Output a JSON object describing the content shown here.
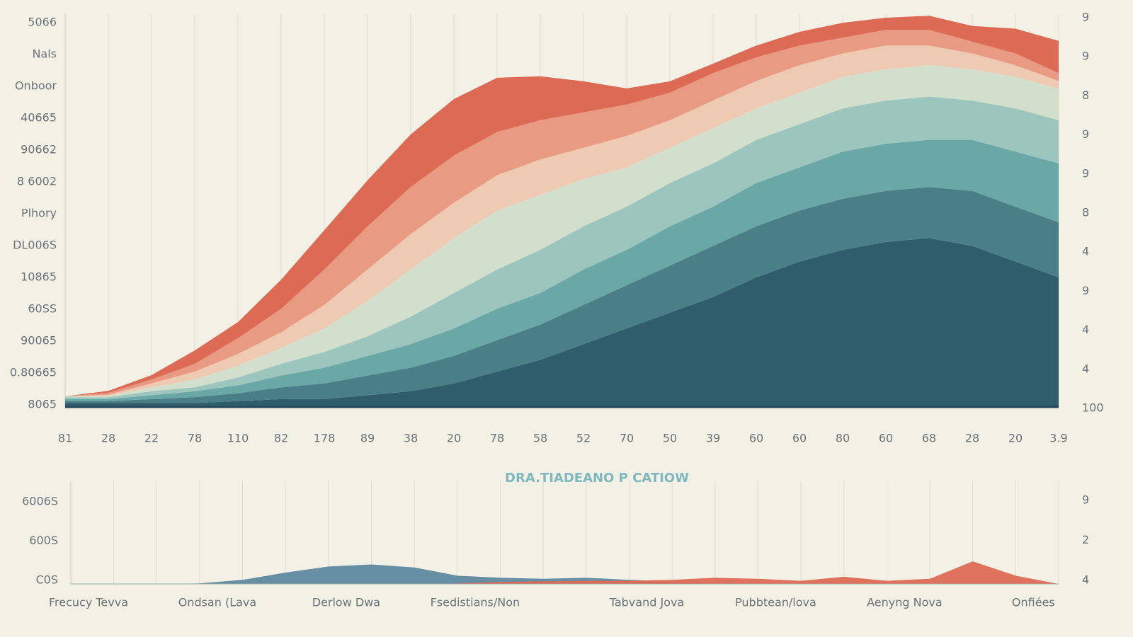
{
  "chart_data": [
    {
      "type": "stacked_area",
      "categories": [
        "81",
        "28",
        "22",
        "78",
        "110",
        "82",
        "178",
        "89",
        "38",
        "20",
        "78",
        "58",
        "52",
        "70",
        "50",
        "39",
        "60",
        "60",
        "80",
        "60",
        "68",
        "28",
        "20",
        "3.9"
      ],
      "left_axis_labels": [
        "5066",
        "Nals",
        "Onboor",
        "40665",
        "90662",
        "8 6002",
        "Plhory",
        "DL006S",
        "10865",
        "60SS",
        "90065",
        "0.80665",
        "8065"
      ],
      "right_axis_labels": [
        "9",
        "9",
        "8",
        "9",
        "9",
        "8",
        "4",
        "9",
        "4",
        "4",
        "100"
      ],
      "ylim": [
        0,
        100
      ],
      "series": [
        {
          "color": "#2f5d6c",
          "values": [
            1,
            1,
            1,
            1,
            1.5,
            2,
            2,
            3,
            4,
            6,
            9,
            12,
            16,
            20,
            24,
            28,
            33,
            37,
            40,
            42,
            43,
            41,
            37,
            33
          ]
        },
        {
          "color": "#4a7f87",
          "values": [
            0.5,
            0.5,
            1,
            1.5,
            2,
            3,
            4,
            5,
            6,
            7,
            8,
            9,
            10,
            11,
            12,
            13,
            13,
            13,
            13,
            13,
            13,
            14,
            14,
            14
          ]
        },
        {
          "color": "#6aa7a7",
          "values": [
            0.5,
            0.5,
            1,
            1.5,
            2,
            3,
            4,
            5,
            6,
            7,
            8,
            8,
            9,
            9,
            10,
            10,
            11,
            11,
            12,
            12,
            12,
            13,
            14,
            15
          ]
        },
        {
          "color": "#9cc6bd",
          "values": [
            0.5,
            0.5,
            1,
            1,
            2,
            3,
            4,
            5,
            7,
            9,
            10,
            11,
            11,
            11,
            11,
            11,
            11,
            11,
            11,
            11,
            11,
            10,
            11,
            11
          ]
        },
        {
          "color": "#d3dfcd",
          "values": [
            0.2,
            0.3,
            1,
            2,
            3,
            4,
            6,
            9,
            12,
            14,
            15,
            14,
            12,
            10,
            9,
            9,
            8,
            8,
            8,
            8,
            8,
            8,
            8,
            8
          ]
        },
        {
          "color": "#eecab2",
          "values": [
            0,
            0.3,
            1,
            2,
            3,
            4,
            6,
            8,
            9,
            9,
            9,
            9,
            8,
            8,
            7,
            7,
            7,
            7,
            6,
            6,
            5,
            4,
            3,
            2
          ]
        },
        {
          "color": "#e99a82",
          "values": [
            0,
            0.5,
            1,
            2,
            4,
            6,
            9,
            11,
            12,
            12,
            11,
            10,
            9,
            8,
            7,
            7,
            6,
            5,
            4,
            4,
            4,
            3,
            3,
            2
          ]
        },
        {
          "color": "#dc6a54",
          "values": [
            0,
            0.5,
            1.1,
            3.4,
            4.1,
            7.4,
            10,
            11.7,
            13.4,
            14.4,
            13.8,
            11.2,
            7.9,
            4.1,
            2.9,
            2.4,
            3,
            3.5,
            3.8,
            3.1,
            3.6,
            4,
            6.3,
            8.2
          ]
        }
      ]
    },
    {
      "type": "area",
      "title": "DRA.TIADEANO P CATIOW",
      "categories": [
        "Frecucy Tevva",
        null,
        null,
        "Ondsan (Lava",
        null,
        null,
        "Derlow Dwa",
        null,
        null,
        "Fsedistians/Non",
        null,
        null,
        null,
        "Tabvand Jova",
        null,
        null,
        "Pubbtean/lova",
        null,
        null,
        "Aenyng Nova",
        null,
        null,
        "Onfiées",
        null
      ],
      "left_axis_labels": [
        "6006S",
        "600S",
        "C0S"
      ],
      "right_axis_labels": [
        "9",
        "2",
        "4"
      ],
      "ylim": [
        0,
        100
      ],
      "series": [
        {
          "color": "#5f89a0",
          "values": [
            0,
            0,
            0,
            0.5,
            4,
            11,
            17,
            19,
            16,
            8,
            6,
            5,
            6,
            4,
            2,
            0,
            0,
            0,
            0,
            0,
            0,
            0,
            0,
            0
          ]
        },
        {
          "color": "#dc6a54",
          "values": [
            0,
            0,
            0,
            0,
            0,
            0,
            0,
            0,
            0,
            0.5,
            2,
            2.5,
            3,
            3,
            4,
            6,
            5,
            3,
            7,
            3,
            5,
            22,
            8,
            0
          ]
        }
      ]
    }
  ]
}
